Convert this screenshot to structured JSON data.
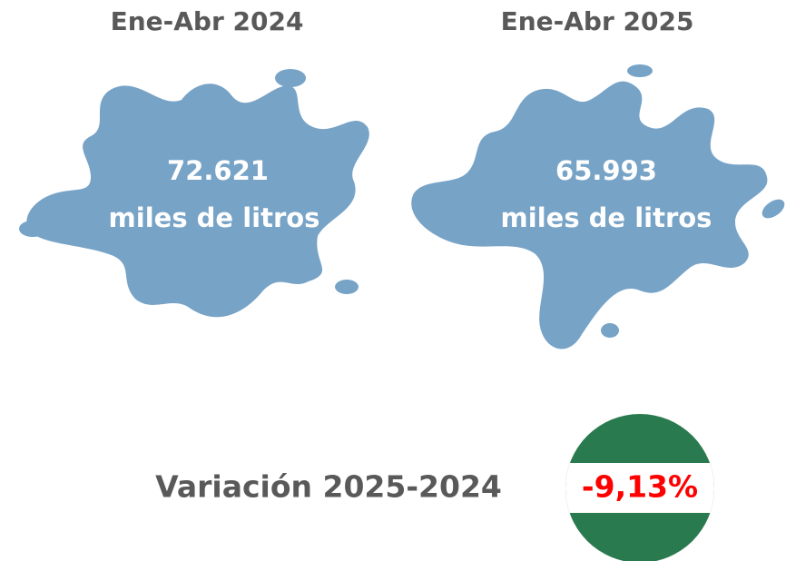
{
  "panels": [
    {
      "title": "Ene-Abr 2024",
      "value": "72.621",
      "unit": "miles de litros"
    },
    {
      "title": "Ene-Abr 2025",
      "value": "65.993",
      "unit": "miles de litros"
    }
  ],
  "variation": {
    "label": "Variación 2025-2024",
    "value": "-9,13%"
  }
}
